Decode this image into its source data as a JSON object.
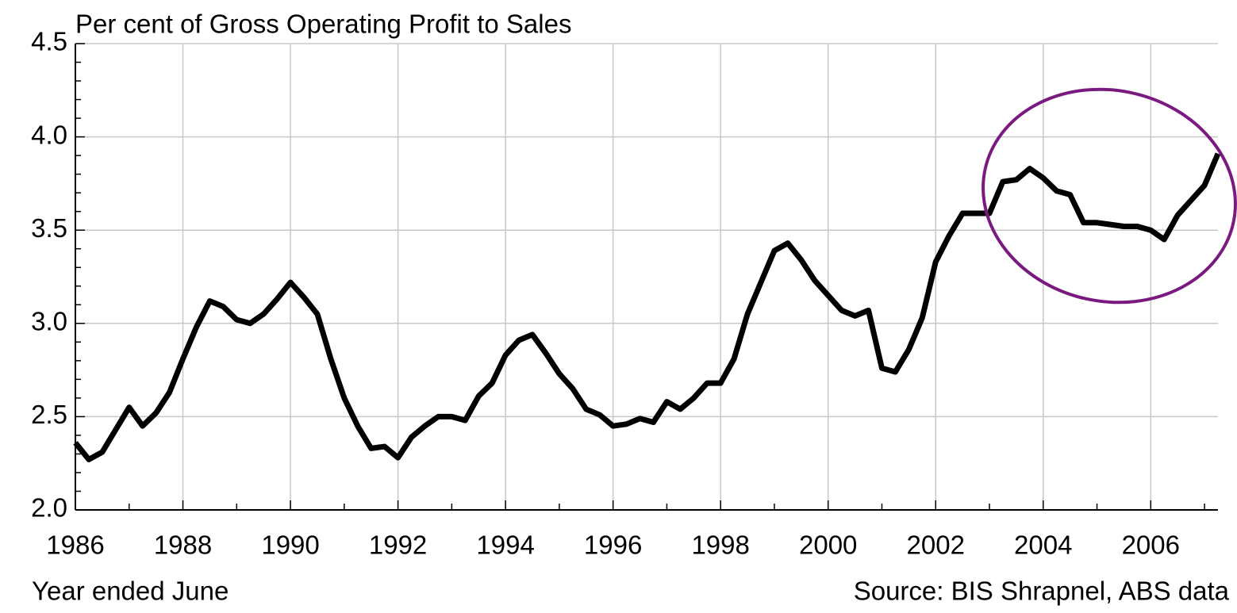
{
  "chart_data": {
    "type": "line",
    "title": "Per cent of Gross Operating Profit to Sales",
    "xlabel": "Year ended June",
    "source": "Source: BIS Shrapnel, ABS data",
    "x": [
      1986,
      1986.25,
      1986.5,
      1986.75,
      1987,
      1987.25,
      1987.5,
      1987.75,
      1988,
      1988.25,
      1988.5,
      1988.75,
      1989,
      1989.25,
      1989.5,
      1989.75,
      1990,
      1990.25,
      1990.5,
      1990.75,
      1991,
      1991.25,
      1991.5,
      1991.75,
      1992,
      1992.25,
      1992.5,
      1992.75,
      1993,
      1993.25,
      1993.5,
      1993.75,
      1994,
      1994.25,
      1994.5,
      1994.75,
      1995,
      1995.25,
      1995.5,
      1995.75,
      1996,
      1996.25,
      1996.5,
      1996.75,
      1997,
      1997.25,
      1997.5,
      1997.75,
      1998,
      1998.25,
      1998.5,
      1998.75,
      1999,
      1999.25,
      1999.5,
      1999.75,
      2000,
      2000.25,
      2000.5,
      2000.75,
      2001,
      2001.25,
      2001.5,
      2001.75,
      2002,
      2002.25,
      2002.5,
      2002.75,
      2003,
      2003.25,
      2003.5,
      2003.75,
      2004,
      2004.25,
      2004.5,
      2004.75,
      2005,
      2005.25,
      2005.5,
      2005.75,
      2006,
      2006.25,
      2006.5,
      2006.75,
      2007,
      2007.25
    ],
    "series": [
      {
        "color": "#000000",
        "values": [
          2.36,
          2.27,
          2.31,
          2.43,
          2.55,
          2.45,
          2.52,
          2.63,
          2.81,
          2.98,
          3.12,
          3.09,
          3.02,
          3.0,
          3.05,
          3.13,
          3.22,
          3.14,
          3.05,
          2.81,
          2.6,
          2.45,
          2.33,
          2.34,
          2.28,
          2.39,
          2.45,
          2.5,
          2.5,
          2.48,
          2.61,
          2.68,
          2.83,
          2.91,
          2.94,
          2.84,
          2.73,
          2.65,
          2.54,
          2.51,
          2.45,
          2.46,
          2.49,
          2.47,
          2.58,
          2.54,
          2.6,
          2.68,
          2.68,
          2.81,
          3.05,
          3.22,
          3.39,
          3.43,
          3.34,
          3.23,
          3.15,
          3.07,
          3.04,
          3.07,
          2.76,
          2.74,
          2.86,
          3.03,
          3.33,
          3.47,
          3.59,
          3.59,
          3.59,
          3.76,
          3.77,
          3.83,
          3.78,
          3.71,
          3.69,
          3.54,
          3.54,
          3.53,
          3.52,
          3.52,
          3.5,
          3.45,
          3.58,
          3.66,
          3.74,
          3.91
        ]
      }
    ],
    "xlim": [
      1986,
      2007.25
    ],
    "ylim": [
      2.0,
      4.5
    ],
    "xticks": [
      1986,
      1988,
      1990,
      1992,
      1994,
      1996,
      1998,
      2000,
      2002,
      2004,
      2006
    ],
    "x_minor_ticks": [
      1987,
      1989,
      1991,
      1993,
      1995,
      1997,
      1999,
      2001,
      2003,
      2005,
      2007
    ],
    "yticks": [
      {
        "value": 2,
        "label": "2.0"
      },
      2.5,
      {
        "value": 3,
        "label": "3.0"
      },
      3.5,
      {
        "value": 4,
        "label": "4.0"
      },
      4.5
    ],
    "y_minor_ticks": [
      2.1,
      2.2,
      2.3,
      2.4,
      2.6,
      2.7,
      2.8,
      2.9,
      3.1,
      3.2,
      3.3,
      3.4,
      3.6,
      3.7,
      3.8,
      3.9,
      4.1,
      4.2,
      4.3,
      4.4
    ],
    "grid": true
  }
}
